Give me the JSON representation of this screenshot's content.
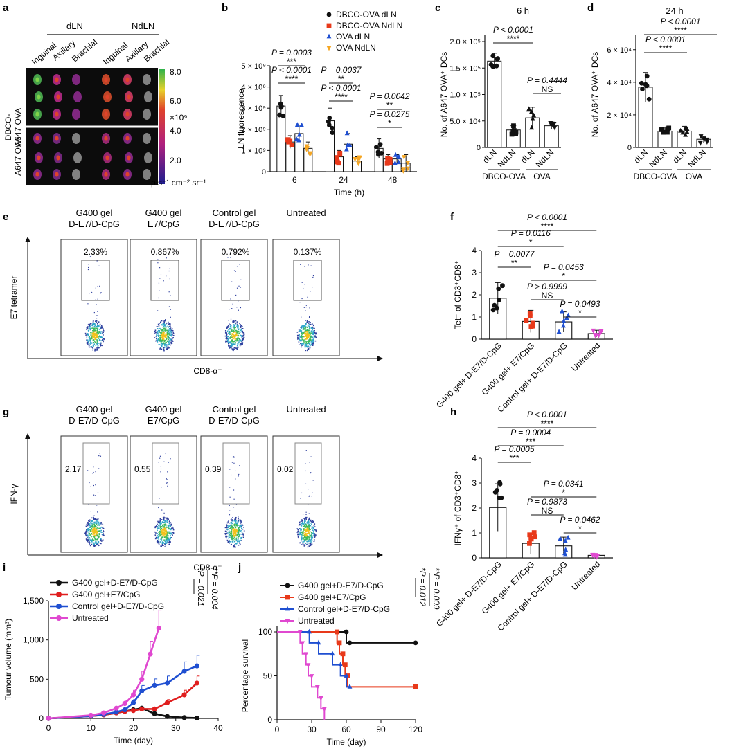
{
  "panel_labels": {
    "a": "a",
    "b": "b",
    "c": "c",
    "d": "d",
    "e": "e",
    "f": "f",
    "g": "g",
    "h": "h",
    "i": "i",
    "j": "j"
  },
  "panel_a": {
    "dln": "dLN",
    "ndln": "NdLN",
    "cols": [
      "Inguinal",
      "Axillary",
      "Brachial",
      "Inguinal",
      "Axillary",
      "Brachial"
    ],
    "row1": "DBCO-A647 OVA",
    "row1_l1": "DBCO-",
    "row1_l2": "A647 OVA",
    "row2": "A647 OVA",
    "scale_ticks": [
      "8.0",
      "6.0",
      "4.0",
      "2.0"
    ],
    "scale_mult": "×10⁹",
    "scale_unit": "p s⁻¹ cm⁻² sr⁻¹",
    "colors": {
      "low": "#2a2a8c",
      "mid": "#c0267a",
      "high": "#39b54a"
    }
  },
  "chart_data": [
    {
      "id": "b",
      "type": "bar",
      "categories": [
        "6",
        "24",
        "48"
      ],
      "xlabel": "Time (h)",
      "ylabel": "LN fluorescence",
      "yticks": [
        "0",
        "1 × 10⁹",
        "2 × 10⁹",
        "3 × 10⁹",
        "4 × 10⁹",
        "5 × 10⁹"
      ],
      "ylim": [
        0,
        5000000000.0
      ],
      "series": [
        {
          "name": "DBCO-OVA dLN",
          "color": "#111111",
          "marker": "circle",
          "values": [
            3100000000.0,
            2400000000.0,
            1100000000.0
          ],
          "err": [
            500000000.0,
            600000000.0,
            450000000.0
          ]
        },
        {
          "name": "DBCO-OVA NdLN",
          "color": "#e8391a",
          "marker": "square",
          "values": [
            1400000000.0,
            700000000.0,
            600000000.0
          ],
          "err": [
            300000000.0,
            300000000.0,
            200000000.0
          ]
        },
        {
          "name": "OVA dLN",
          "color": "#1f4fd1",
          "marker": "triangle",
          "values": [
            1800000000.0,
            1300000000.0,
            600000000.0
          ],
          "err": [
            400000000.0,
            500000000.0,
            200000000.0
          ]
        },
        {
          "name": "OVA NdLN",
          "color": "#f5a623",
          "marker": "tri-down",
          "values": [
            1100000000.0,
            500000000.0,
            400000000.0
          ],
          "err": [
            300000000.0,
            200000000.0,
            400000000.0
          ]
        }
      ],
      "annotations": [
        "P = 0.0003",
        "***",
        "P < 0.0001",
        "****",
        "P = 0.0037",
        "**",
        "P < 0.0001",
        "****",
        "P = 0.0042",
        "**",
        "P = 0.0275",
        "*"
      ]
    },
    {
      "id": "c",
      "type": "bar",
      "title": "6 h",
      "categories": [
        "dLN",
        "NdLN",
        "dLN",
        "NdLN"
      ],
      "groups": [
        "DBCO-OVA",
        "OVA"
      ],
      "ylabel": "No. of A647 OVA⁺ DCs",
      "yticks": [
        "0",
        "5.0 × 10⁴",
        "1.0 × 10⁵",
        "1.5 × 10⁵",
        "2.0 × 10⁵"
      ],
      "ylim": [
        0,
        200000.0
      ],
      "values": [
        163000,
        33000,
        56000,
        41000
      ],
      "err": [
        15000,
        8000,
        20000,
        7000
      ],
      "annotations": [
        "P < 0.0001",
        "****",
        "P = 0.4444",
        "NS"
      ]
    },
    {
      "id": "d",
      "type": "bar",
      "title": "24 h",
      "categories": [
        "dLN",
        "NdLN",
        "dLN",
        "NdLN"
      ],
      "groups": [
        "DBCO-OVA",
        "OVA"
      ],
      "ylabel": "No. of A647 OVA⁺ DCs",
      "yticks": [
        "0",
        "2 × 10⁴",
        "4 × 10⁴",
        "6 × 10⁴"
      ],
      "ylim": [
        0,
        65000.0
      ],
      "values": [
        37000,
        10000,
        10000,
        5000
      ],
      "err": [
        9000,
        2000,
        3000,
        2000
      ],
      "annotations": [
        "P < 0.0001",
        "****",
        "P < 0.0001",
        "****"
      ]
    },
    {
      "id": "f",
      "type": "bar",
      "categories": [
        "G400 gel+ D-E7/D-CpG",
        "G400 gel+ E7/CpG",
        "Control gel+ D-E7/D-CpG",
        "Untreated"
      ],
      "ylabel": "Tet⁺ of CD3⁺CD8⁺",
      "yticks": [
        "0",
        "1",
        "2",
        "3",
        "4"
      ],
      "ylim": [
        0,
        4
      ],
      "values": [
        1.85,
        0.8,
        0.78,
        0.25
      ],
      "err": [
        0.7,
        0.5,
        0.45,
        0.15
      ],
      "colors": [
        "#111111",
        "#e8391a",
        "#1f4fd1",
        "#e048d0"
      ],
      "annotations": [
        "P < 0.0001",
        "****",
        "P = 0.0116",
        "*",
        "P = 0.0077",
        "**",
        "P = 0.0453",
        "*",
        "P > 0.9999",
        "NS",
        "P = 0.0493",
        "*"
      ]
    },
    {
      "id": "h",
      "type": "bar",
      "categories": [
        "G400 gel+ D-E7/D-CpG",
        "G400 gel+ E7/CpG",
        "Control gel+ D-E7/D-CpG",
        "Untreated"
      ],
      "ylabel": "IFNγ⁺ of CD3⁺CD8⁺",
      "yticks": [
        "0",
        "1",
        "2",
        "3",
        "4"
      ],
      "ylim": [
        0,
        4
      ],
      "values": [
        2.02,
        0.58,
        0.48,
        0.1
      ],
      "err": [
        0.95,
        0.42,
        0.35,
        0.05
      ],
      "colors": [
        "#111111",
        "#e8391a",
        "#1f4fd1",
        "#e048d0"
      ],
      "annotations": [
        "P < 0.0001",
        "****",
        "P = 0.0004",
        "***",
        "P = 0.0005",
        "***",
        "P = 0.0341",
        "*",
        "P = 0.9873",
        "NS",
        "P = 0.0462",
        "*"
      ]
    },
    {
      "id": "i",
      "type": "line",
      "xlabel": "Time (day)",
      "ylabel": "Tumour volume (mm³)",
      "xticks": [
        "0",
        "10",
        "20",
        "30",
        "40"
      ],
      "xlim": [
        0,
        40
      ],
      "yticks": [
        "0",
        "500",
        "1,000",
        "1,500"
      ],
      "ylim": [
        0,
        1500
      ],
      "series": [
        {
          "name": "G400 gel+D-E7/D-CpG",
          "color": "#111111",
          "x": [
            0,
            10,
            13,
            16,
            18,
            20,
            22,
            25,
            28,
            32,
            35
          ],
          "y": [
            0,
            30,
            45,
            70,
            90,
            110,
            130,
            60,
            25,
            10,
            5
          ]
        },
        {
          "name": "G400 gel+E7/CpG",
          "color": "#e01e1e",
          "x": [
            0,
            10,
            13,
            16,
            18,
            20,
            22,
            25,
            28,
            32,
            35
          ],
          "y": [
            0,
            30,
            45,
            70,
            90,
            100,
            120,
            120,
            200,
            300,
            450
          ]
        },
        {
          "name": "Control gel+D-E7/D-CpG",
          "color": "#1f4fd1",
          "x": [
            0,
            10,
            13,
            16,
            18,
            20,
            22,
            25,
            28,
            32,
            35
          ],
          "y": [
            0,
            30,
            50,
            80,
            110,
            200,
            350,
            420,
            450,
            600,
            670
          ]
        },
        {
          "name": "Untreated",
          "color": "#e048d0",
          "x": [
            0,
            10,
            13,
            16,
            18,
            20,
            22,
            24,
            26
          ],
          "y": [
            0,
            40,
            70,
            130,
            190,
            300,
            500,
            820,
            1150
          ]
        }
      ],
      "annotations": [
        "*P = 0.021",
        "**P = 0.004"
      ]
    },
    {
      "id": "j",
      "type": "line",
      "xlabel": "Time (day)",
      "ylabel": "Percentage survival",
      "xticks": [
        "0",
        "30",
        "60",
        "90",
        "120"
      ],
      "xlim": [
        0,
        120
      ],
      "yticks": [
        "0",
        "50",
        "100"
      ],
      "ylim": [
        0,
        100
      ],
      "series": [
        {
          "name": "G400 gel+D-E7/D-CpG",
          "color": "#111111",
          "x": [
            0,
            60,
            60,
            63,
            63,
            120
          ],
          "y": [
            100,
            100,
            87.5,
            87.5,
            87.5,
            87.5
          ]
        },
        {
          "name": "G400 gel+E7/CpG",
          "color": "#e8391a",
          "x": [
            0,
            52,
            52,
            54,
            54,
            57,
            57,
            59,
            59,
            61,
            61,
            120
          ],
          "y": [
            100,
            100,
            87.5,
            87.5,
            75,
            75,
            62.5,
            62.5,
            50,
            50,
            37.5,
            37.5
          ]
        },
        {
          "name": "Control gel+D-E7/D-CpG",
          "color": "#1f4fd1",
          "x": [
            0,
            28,
            28,
            36,
            36,
            48,
            48,
            55,
            55,
            60,
            60,
            63
          ],
          "y": [
            100,
            100,
            87.5,
            87.5,
            75,
            75,
            62.5,
            62.5,
            50,
            50,
            37.5,
            37.5
          ]
        },
        {
          "name": "Untreated",
          "color": "#e048d0",
          "x": [
            0,
            20,
            20,
            22,
            22,
            25,
            25,
            27,
            27,
            30,
            30,
            35,
            35,
            38,
            38,
            41,
            41
          ],
          "y": [
            100,
            100,
            87.5,
            87.5,
            75,
            75,
            62.5,
            62.5,
            50,
            50,
            37.5,
            37.5,
            25,
            25,
            12.5,
            12.5,
            0
          ]
        }
      ],
      "annotations": [
        "*P = 0.012",
        "**P = 0.009"
      ]
    }
  ],
  "flow_e": {
    "ylabel": "E7 tetramer",
    "xlabel": "CD8-α⁺",
    "plots": [
      {
        "l1": "G400 gel",
        "l2": "D-E7/D-CpG",
        "pct": "2.33%"
      },
      {
        "l1": "G400 gel",
        "l2": "E7/CpG",
        "pct": "0.867%"
      },
      {
        "l1": "Control gel",
        "l2": "D-E7/D-CpG",
        "pct": "0.792%"
      },
      {
        "l1": "Untreated",
        "l2": "",
        "pct": "0.137%"
      }
    ]
  },
  "flow_g": {
    "ylabel": "IFN-γ",
    "xlabel": "CD8-α⁺",
    "plots": [
      {
        "l1": "G400 gel",
        "l2": "D-E7/D-CpG",
        "pct": "2.17"
      },
      {
        "l1": "G400 gel",
        "l2": "E7/CpG",
        "pct": "0.55"
      },
      {
        "l1": "Control gel",
        "l2": "D-E7/D-CpG",
        "pct": "0.39"
      },
      {
        "l1": "Untreated",
        "l2": "",
        "pct": "0.02"
      }
    ]
  }
}
